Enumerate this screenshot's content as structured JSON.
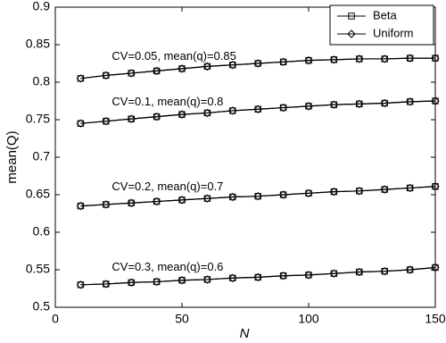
{
  "chart_data": {
    "type": "line",
    "x_label": "N",
    "y_label": "mean(Q)",
    "x": [
      10,
      20,
      30,
      40,
      50,
      60,
      70,
      80,
      90,
      100,
      110,
      120,
      130,
      140,
      150
    ],
    "series": [
      {
        "name": "Beta",
        "marker": "square",
        "color": "#000000",
        "values": [
          0.805,
          0.809,
          0.812,
          0.815,
          0.818,
          0.821,
          0.823,
          0.825,
          0.827,
          0.829,
          0.83,
          0.831,
          0.831,
          0.832,
          0.832
        ]
      },
      {
        "name": "Uniform",
        "marker": "diamond",
        "color": "#000000",
        "values": [
          0.805,
          0.809,
          0.812,
          0.815,
          0.818,
          0.821,
          0.823,
          0.825,
          0.827,
          0.829,
          0.83,
          0.831,
          0.831,
          0.832,
          0.832
        ]
      },
      {
        "name": "Beta",
        "marker": "square",
        "color": "#000000",
        "values": [
          0.745,
          0.748,
          0.751,
          0.754,
          0.757,
          0.759,
          0.762,
          0.764,
          0.766,
          0.768,
          0.77,
          0.771,
          0.772,
          0.774,
          0.775
        ]
      },
      {
        "name": "Uniform",
        "marker": "diamond",
        "color": "#000000",
        "values": [
          0.745,
          0.748,
          0.751,
          0.754,
          0.757,
          0.759,
          0.762,
          0.764,
          0.766,
          0.768,
          0.77,
          0.771,
          0.772,
          0.774,
          0.775
        ]
      },
      {
        "name": "Beta",
        "marker": "square",
        "color": "#000000",
        "values": [
          0.635,
          0.637,
          0.639,
          0.641,
          0.643,
          0.645,
          0.647,
          0.648,
          0.65,
          0.652,
          0.654,
          0.655,
          0.657,
          0.659,
          0.661
        ]
      },
      {
        "name": "Uniform",
        "marker": "diamond",
        "color": "#000000",
        "values": [
          0.635,
          0.637,
          0.639,
          0.641,
          0.643,
          0.645,
          0.647,
          0.648,
          0.65,
          0.652,
          0.654,
          0.655,
          0.657,
          0.659,
          0.661
        ]
      },
      {
        "name": "Beta",
        "marker": "square",
        "color": "#000000",
        "values": [
          0.53,
          0.531,
          0.533,
          0.534,
          0.536,
          0.537,
          0.539,
          0.54,
          0.542,
          0.543,
          0.545,
          0.547,
          0.548,
          0.55,
          0.553
        ]
      },
      {
        "name": "Uniform",
        "marker": "diamond",
        "color": "#000000",
        "values": [
          0.53,
          0.531,
          0.533,
          0.534,
          0.536,
          0.537,
          0.539,
          0.54,
          0.542,
          0.543,
          0.545,
          0.547,
          0.548,
          0.55,
          0.553
        ]
      }
    ],
    "annotations": [
      "CV=0.05, mean(q)=0.85",
      "CV=0.1, mean(q)=0.8",
      "CV=0.2, mean(q)=0.7",
      "CV=0.3, mean(q)=0.6"
    ],
    "xlim": [
      0,
      150
    ],
    "ylim": [
      0.5,
      0.9
    ],
    "xticks": [
      0,
      50,
      100,
      150
    ],
    "yticks": [
      0.5,
      0.55,
      0.6,
      0.65,
      0.7,
      0.75,
      0.8,
      0.85,
      0.9
    ],
    "grid": false,
    "legend": "upper right"
  }
}
